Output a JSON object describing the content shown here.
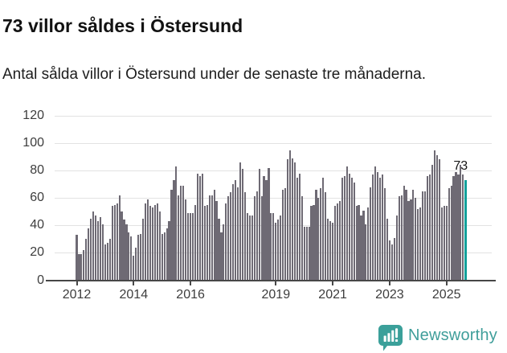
{
  "header": {
    "title": "73 villor såldes i Östersund",
    "subtitle": "Antal sålda villor i Östersund under de senaste tre månaderna."
  },
  "chart_data": {
    "type": "bar",
    "title": "73 villor såldes i Östersund",
    "xlabel": "",
    "ylabel": "",
    "frequency": "monthly",
    "x_start": "2012-01",
    "x_end": "2025-09",
    "ylim": [
      0,
      120
    ],
    "grid": true,
    "yticks": [
      0,
      20,
      40,
      60,
      80,
      100,
      120
    ],
    "xticks": [
      {
        "label": "2012",
        "month_index": 0
      },
      {
        "label": "2014",
        "month_index": 24
      },
      {
        "label": "2016",
        "month_index": 48
      },
      {
        "label": "2019",
        "month_index": 84
      },
      {
        "label": "2021",
        "month_index": 108
      },
      {
        "label": "2023",
        "month_index": 132
      },
      {
        "label": "2025",
        "month_index": 156
      }
    ],
    "values": [
      33,
      19,
      19,
      22,
      30,
      38,
      45,
      50,
      47,
      43,
      46,
      41,
      26,
      27,
      30,
      54,
      55,
      56,
      62,
      50,
      44,
      41,
      35,
      32,
      18,
      24,
      33,
      34,
      45,
      56,
      59,
      54,
      53,
      55,
      56,
      50,
      34,
      35,
      38,
      43,
      66,
      73,
      83,
      62,
      69,
      69,
      59,
      49,
      49,
      49,
      55,
      78,
      76,
      78,
      54,
      55,
      62,
      62,
      66,
      58,
      45,
      35,
      41,
      56,
      61,
      64,
      70,
      73,
      68,
      86,
      81,
      64,
      49,
      47,
      47,
      61,
      65,
      81,
      61,
      76,
      73,
      82,
      49,
      49,
      42,
      44,
      47,
      66,
      67,
      88,
      95,
      89,
      86,
      75,
      78,
      61,
      39,
      39,
      39,
      54,
      55,
      66,
      60,
      67,
      75,
      64,
      45,
      43,
      42,
      54,
      56,
      58,
      75,
      76,
      83,
      78,
      75,
      71,
      54,
      55,
      47,
      51,
      41,
      53,
      68,
      77,
      83,
      79,
      75,
      77,
      67,
      45,
      29,
      26,
      31,
      47,
      61,
      62,
      69,
      66,
      58,
      59,
      66,
      60,
      52,
      53,
      65,
      65,
      76,
      77,
      84,
      95,
      91,
      88,
      53,
      54,
      54,
      67,
      69,
      76,
      79,
      77,
      84,
      77,
      73
    ],
    "highlight": {
      "index": 164,
      "value": 73,
      "label": "73"
    },
    "colors": {
      "bar": "#6e6a74",
      "highlight": "#12a09a",
      "grid": "#e2e2e2",
      "axis": "#474747"
    }
  },
  "footer": {
    "brand": "Newsworthy",
    "logo_icon": "newsworthy-speech-bubble-chart-icon",
    "brand_color": "#3f9e9a",
    "logo_fill": "#3ba09a"
  }
}
